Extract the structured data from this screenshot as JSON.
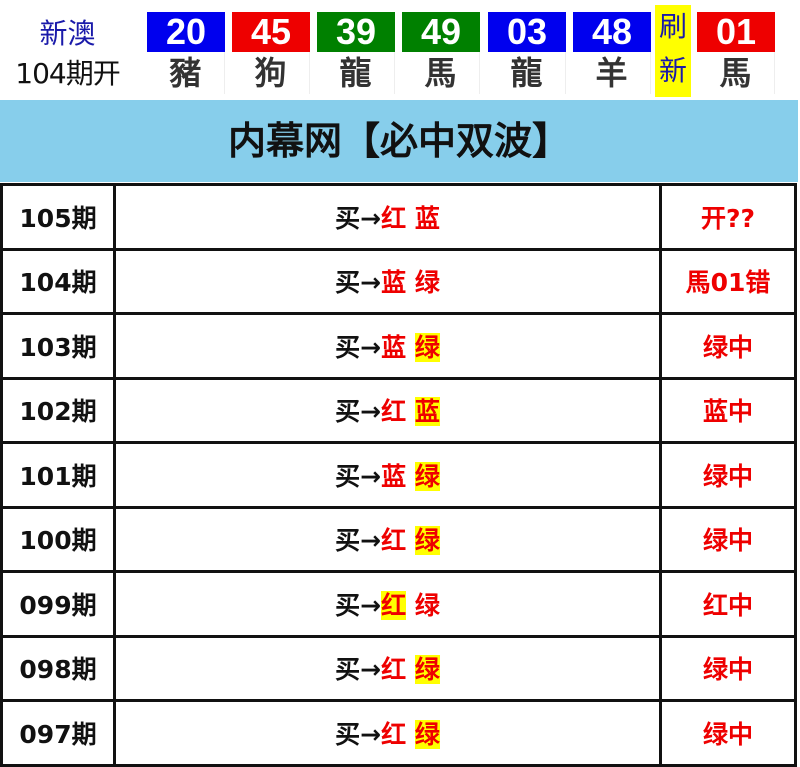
{
  "header": {
    "region": "新澳",
    "draw_label": "104期开",
    "refresh_label": [
      "刷",
      "新"
    ],
    "balls": [
      {
        "number": "20",
        "zodiac": "豬",
        "color": "#0000ee"
      },
      {
        "number": "45",
        "zodiac": "狗",
        "color": "#ee0000"
      },
      {
        "number": "39",
        "zodiac": "龍",
        "color": "#008000"
      },
      {
        "number": "49",
        "zodiac": "馬",
        "color": "#008000"
      },
      {
        "number": "03",
        "zodiac": "龍",
        "color": "#0000ee"
      },
      {
        "number": "48",
        "zodiac": "羊",
        "color": "#0000ee"
      }
    ],
    "special": {
      "number": "01",
      "zodiac": "馬",
      "color": "#ee0000"
    }
  },
  "title": "内幕网【必中双波】",
  "buy_prefix": "买→",
  "rows": [
    {
      "period": "105期",
      "picks": [
        "红",
        "蓝"
      ],
      "hit": -1,
      "result": "开??"
    },
    {
      "period": "104期",
      "picks": [
        "蓝",
        "绿"
      ],
      "hit": -1,
      "result": "馬01错"
    },
    {
      "period": "103期",
      "picks": [
        "蓝",
        "绿"
      ],
      "hit": 1,
      "result": "绿中"
    },
    {
      "period": "102期",
      "picks": [
        "红",
        "蓝"
      ],
      "hit": 1,
      "result": "蓝中"
    },
    {
      "period": "101期",
      "picks": [
        "蓝",
        "绿"
      ],
      "hit": 1,
      "result": "绿中"
    },
    {
      "period": "100期",
      "picks": [
        "红",
        "绿"
      ],
      "hit": 1,
      "result": "绿中"
    },
    {
      "period": "099期",
      "picks": [
        "红",
        "绿"
      ],
      "hit": 0,
      "result": "红中"
    },
    {
      "period": "098期",
      "picks": [
        "红",
        "绿"
      ],
      "hit": 1,
      "result": "绿中"
    },
    {
      "period": "097期",
      "picks": [
        "红",
        "绿"
      ],
      "hit": 1,
      "result": "绿中"
    }
  ]
}
